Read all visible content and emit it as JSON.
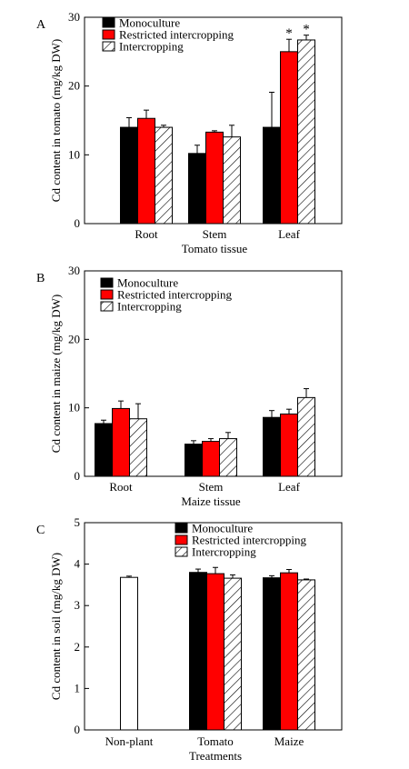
{
  "chart_data": [
    {
      "type": "bar",
      "panel_label": "A",
      "title": "",
      "xlabel": "Tomato tissue",
      "ylabel": "Cd content in tomato (mg/kg DW)",
      "ylim": [
        0,
        30
      ],
      "yticks": [
        0,
        10,
        20,
        30
      ],
      "categories": [
        "Root",
        "Stem",
        "Leaf"
      ],
      "legend_position": "top-left",
      "series": [
        {
          "name": "Monoculture",
          "pattern": "solid",
          "color": "#000000",
          "values": [
            14.0,
            10.2,
            14.0
          ],
          "errors": [
            1.4,
            1.2,
            5.1
          ]
        },
        {
          "name": "Restricted intercropping",
          "pattern": "solid",
          "color": "#ff0000",
          "values": [
            15.3,
            13.3,
            25.0
          ],
          "errors": [
            1.2,
            0.2,
            1.8
          ]
        },
        {
          "name": "Intercropping",
          "pattern": "hatch",
          "color": "#ffffff",
          "values": [
            14.0,
            12.6,
            26.7
          ],
          "errors": [
            0.3,
            1.7,
            0.7
          ]
        }
      ],
      "annotations": [
        {
          "category": "Leaf",
          "series": "Restricted intercropping",
          "text": "*"
        },
        {
          "category": "Leaf",
          "series": "Intercropping",
          "text": "*"
        }
      ]
    },
    {
      "type": "bar",
      "panel_label": "B",
      "title": "",
      "xlabel": "Maize tissue",
      "ylabel": "Cd content in maize (mg/kg DW)",
      "ylim": [
        0,
        30
      ],
      "yticks": [
        0,
        10,
        20,
        30
      ],
      "categories": [
        "Root",
        "Stem",
        "Leaf"
      ],
      "legend_position": "top-left",
      "series": [
        {
          "name": "Monoculture",
          "pattern": "solid",
          "color": "#000000",
          "values": [
            7.7,
            4.7,
            8.6
          ],
          "errors": [
            0.5,
            0.5,
            1.0
          ]
        },
        {
          "name": "Restricted intercropping",
          "pattern": "solid",
          "color": "#ff0000",
          "values": [
            9.9,
            5.1,
            9.1
          ],
          "errors": [
            1.1,
            0.4,
            0.7
          ]
        },
        {
          "name": "Intercropping",
          "pattern": "hatch",
          "color": "#ffffff",
          "values": [
            8.4,
            5.5,
            11.5
          ],
          "errors": [
            2.2,
            0.9,
            1.3
          ]
        }
      ],
      "annotations": []
    },
    {
      "type": "bar",
      "panel_label": "C",
      "title": "",
      "xlabel": "Treatments",
      "ylabel": "Cd content in soil (mg/kg DW)",
      "ylim": [
        0,
        5
      ],
      "yticks": [
        0,
        1,
        2,
        3,
        4,
        5
      ],
      "categories": [
        "Non-plant",
        "Tomato",
        "Maize"
      ],
      "legend_position": "top-right",
      "single_bar": {
        "category": "Non-plant",
        "pattern": "open",
        "color": "#ffffff",
        "value": 3.68,
        "error": 0.03
      },
      "series": [
        {
          "name": "Monoculture",
          "pattern": "solid",
          "color": "#000000",
          "values": [
            null,
            3.8,
            3.67
          ],
          "errors": [
            null,
            0.08,
            0.05
          ]
        },
        {
          "name": "Restricted intercropping",
          "pattern": "solid",
          "color": "#ff0000",
          "values": [
            null,
            3.77,
            3.79
          ],
          "errors": [
            null,
            0.15,
            0.08
          ]
        },
        {
          "name": "Intercropping",
          "pattern": "hatch",
          "color": "#ffffff",
          "values": [
            null,
            3.66,
            3.62
          ],
          "errors": [
            null,
            0.08,
            0.02
          ]
        }
      ],
      "annotations": []
    }
  ]
}
